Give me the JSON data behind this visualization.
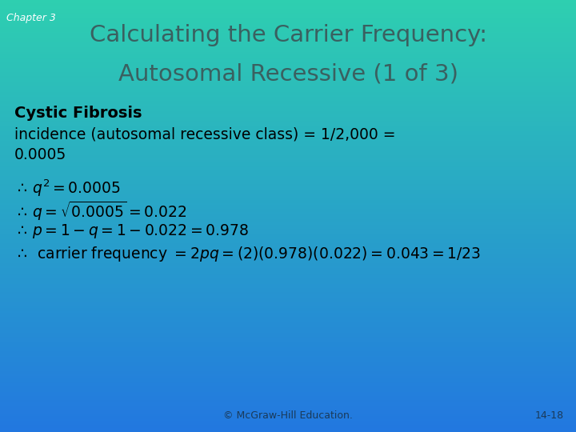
{
  "chapter_label": "Chapter 3",
  "title_line1": "Calculating the Carrier Frequency:",
  "title_line2": "Autosomal Recessive (1 of 3)",
  "bg_color_top": "#2ecfb0",
  "bg_color_bottom": "#2277e0",
  "title_color": "#3a6060",
  "chapter_color": "#ffffff",
  "body_text_color": "#000000",
  "bold_heading": "Cystic Fibrosis",
  "footer_left": "© McGraw-Hill Education.",
  "footer_right": "14-18",
  "footer_color": "#1a3a5a"
}
